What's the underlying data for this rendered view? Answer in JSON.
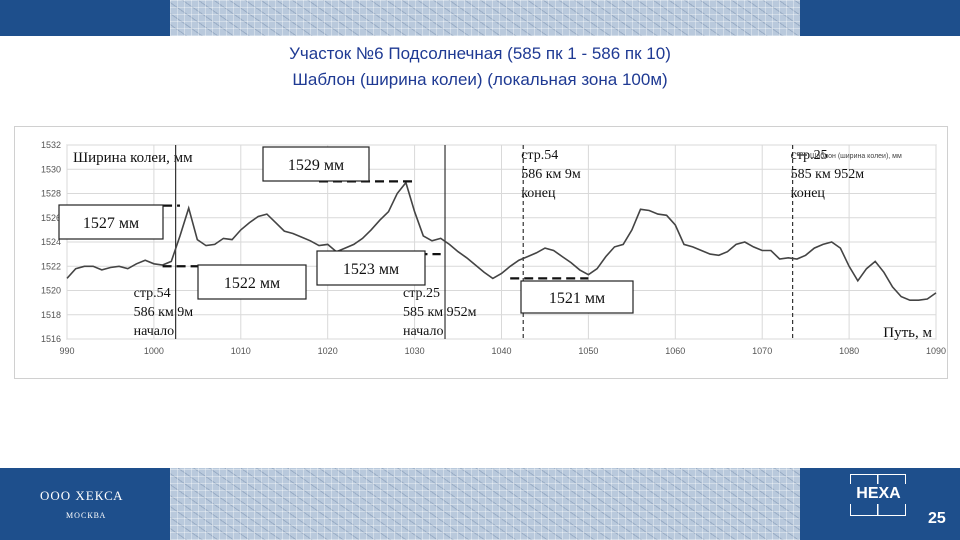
{
  "slide": {
    "title_line1": "Участок №6 Подсолнечная (585 пк 1 - 586 пк 10)",
    "title_line2": "Шаблон (ширина колеи) (локальная зона 100м)",
    "company": "ООО ХЕКСА",
    "city": "МОСКВА",
    "logo_text": "HEXA",
    "page_number": "25",
    "colors": {
      "band": "#1e4f8c",
      "title": "#1f3a93",
      "series": "#444444"
    }
  },
  "chart_data": {
    "type": "line",
    "ylabel": "Ширина колеи, мм",
    "xlabel": "Путь, м",
    "xlim": [
      990,
      1090
    ],
    "ylim": [
      1516,
      1532
    ],
    "xticks": [
      990,
      1000,
      1010,
      1020,
      1030,
      1040,
      1050,
      1060,
      1070,
      1080,
      1090
    ],
    "yticks": [
      1516,
      1518,
      1520,
      1522,
      1524,
      1526,
      1528,
      1530,
      1532
    ],
    "grid": true,
    "legend": {
      "position": "top-right",
      "label": "Шаблон (ширина колеи), мм"
    },
    "series": [
      {
        "name": "Шаблон (ширина колеи), мм",
        "x": [
          990,
          991,
          992,
          993,
          994,
          995,
          996,
          997,
          998,
          999,
          1000,
          1001,
          1002,
          1003,
          1004,
          1005,
          1006,
          1007,
          1008,
          1009,
          1010,
          1011,
          1012,
          1013,
          1014,
          1015,
          1016,
          1017,
          1018,
          1019,
          1020,
          1021,
          1022,
          1023,
          1024,
          1025,
          1026,
          1027,
          1028,
          1029,
          1030,
          1031,
          1032,
          1033,
          1034,
          1035,
          1036,
          1037,
          1038,
          1039,
          1040,
          1041,
          1042,
          1043,
          1044,
          1045,
          1046,
          1047,
          1048,
          1049,
          1050,
          1051,
          1052,
          1053,
          1054,
          1055,
          1056,
          1057,
          1058,
          1059,
          1060,
          1061,
          1062,
          1063,
          1064,
          1065,
          1066,
          1067,
          1068,
          1069,
          1070,
          1071,
          1072,
          1073,
          1074,
          1075,
          1076,
          1077,
          1078,
          1079,
          1080,
          1081,
          1082,
          1083,
          1084,
          1085,
          1086,
          1087,
          1088,
          1089,
          1090
        ],
        "values": [
          1521,
          1521.8,
          1522,
          1522,
          1521.7,
          1521.9,
          1522,
          1521.8,
          1522.2,
          1522.5,
          1522.2,
          1522.1,
          1522.4,
          1524.5,
          1526.8,
          1524.2,
          1523.7,
          1523.8,
          1524.3,
          1524.2,
          1525,
          1525.6,
          1526.1,
          1526.3,
          1525.6,
          1524.9,
          1524.7,
          1524.4,
          1524.1,
          1523.7,
          1523.8,
          1523.2,
          1523.5,
          1523.8,
          1524.3,
          1525,
          1525.8,
          1526.5,
          1528,
          1528.9,
          1526.5,
          1524.5,
          1524.1,
          1524.3,
          1523.8,
          1523.2,
          1522.7,
          1522.1,
          1521.5,
          1521,
          1521.4,
          1522,
          1522.5,
          1522.8,
          1523.1,
          1523.5,
          1523.3,
          1522.8,
          1522.3,
          1521.7,
          1521.3,
          1521.8,
          1522.8,
          1523.6,
          1523.8,
          1525,
          1526.7,
          1526.6,
          1526.3,
          1526.2,
          1525.4,
          1523.8,
          1523.6,
          1523.3,
          1523,
          1522.9,
          1523.2,
          1523.8,
          1524,
          1523.6,
          1523.3,
          1523.3,
          1522.6,
          1522.7,
          1522.6,
          1522.9,
          1523.5,
          1523.8,
          1524,
          1523.5,
          1522,
          1520.8,
          1521.8,
          1522.4,
          1521.5,
          1520.3,
          1519.5,
          1519.2,
          1519.2,
          1519.3,
          1519.8
        ]
      }
    ],
    "annotations": [
      {
        "label": "1527 мм",
        "ref_y": 1527,
        "from_x": 993,
        "to_x": 1003
      },
      {
        "label": "1522 мм",
        "ref_y": 1522,
        "from_x": 1001,
        "to_x": 1011
      },
      {
        "label": "1529 мм",
        "ref_y": 1529,
        "from_x": 1019,
        "to_x": 1030
      },
      {
        "label": "1523 мм",
        "ref_y": 1523,
        "from_x": 1024,
        "to_x": 1033
      },
      {
        "label": "1521 мм",
        "ref_y": 1521,
        "from_x": 1041,
        "to_x": 1050
      }
    ],
    "markers": [
      {
        "x": 1002.5,
        "style": "solid",
        "lines": [
          "стр.54",
          "586 км 9м",
          "начало"
        ]
      },
      {
        "x": 1033.5,
        "style": "solid",
        "lines": [
          "стр.25",
          "585 км 952м",
          "начало"
        ]
      },
      {
        "x": 1042.5,
        "style": "dashed",
        "lines": [
          "стр.54",
          "586 км 9м",
          "конец"
        ]
      },
      {
        "x": 1073.5,
        "style": "dashed",
        "lines": [
          "стр.25",
          "585 км 952м",
          "конец"
        ]
      }
    ]
  }
}
